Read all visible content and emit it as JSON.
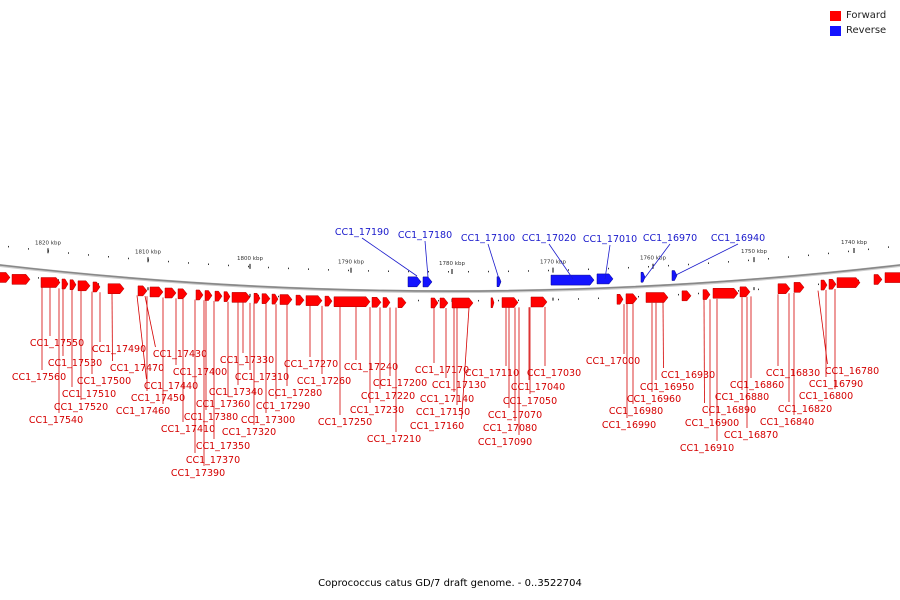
{
  "legend": {
    "forward": {
      "label": "Forward",
      "color": "#ff0000"
    },
    "reverse": {
      "label": "Reverse",
      "color": "#1414ff"
    }
  },
  "caption": "Coprococcus catus GD/7 draft genome. - 0..3522704",
  "colors": {
    "backbone": "#888888",
    "forward_label": "#d40000",
    "reverse_label": "#1a1acc",
    "tick_text": "#333333"
  },
  "ticks": [
    "1820 kbp",
    "1810 kbp",
    "1800 kbp",
    "1790 kbp",
    "1780 kbp",
    "1770 kbp",
    "1760 kbp",
    "1750 kbp",
    "1740 kbp"
  ],
  "reverse_labels": [
    "CC1_17190",
    "CC1_17180",
    "CC1_17100",
    "CC1_17020",
    "CC1_17010",
    "CC1_16970",
    "CC1_16940"
  ],
  "forward_labels": [
    "CC1_17550",
    "CC1_17530",
    "CC1_17560",
    "CC1_17510",
    "CC1_17520",
    "CC1_17540",
    "CC1_17490",
    "CC1_17470",
    "CC1_17500",
    "CC1_17430",
    "CC1_17440",
    "CC1_17450",
    "CC1_17460",
    "CC1_17400",
    "CC1_17410",
    "CC1_17370",
    "CC1_17390",
    "CC1_17380",
    "CC1_17350",
    "CC1_17360",
    "CC1_17340",
    "CC1_17330",
    "CC1_17310",
    "CC1_17320",
    "CC1_17300",
    "CC1_17290",
    "CC1_17280",
    "CC1_17270",
    "CC1_17260",
    "CC1_17250",
    "CC1_17240",
    "CC1_17230",
    "CC1_17220",
    "CC1_17200",
    "CC1_17210",
    "CC1_17170",
    "CC1_17130",
    "CC1_17140",
    "CC1_17150",
    "CC1_17160",
    "CC1_17110",
    "CC1_17070",
    "CC1_17080",
    "CC1_17090",
    "CC1_17040",
    "CC1_17050",
    "CC1_17030",
    "CC1_17000",
    "CC1_16930",
    "CC1_16950",
    "CC1_16960",
    "CC1_16980",
    "CC1_16990",
    "CC1_16890",
    "CC1_16900",
    "CC1_16910",
    "CC1_16860",
    "CC1_16880",
    "CC1_16870",
    "CC1_16830",
    "CC1_16820",
    "CC1_16840",
    "CC1_16780",
    "CC1_16790",
    "CC1_16800"
  ]
}
